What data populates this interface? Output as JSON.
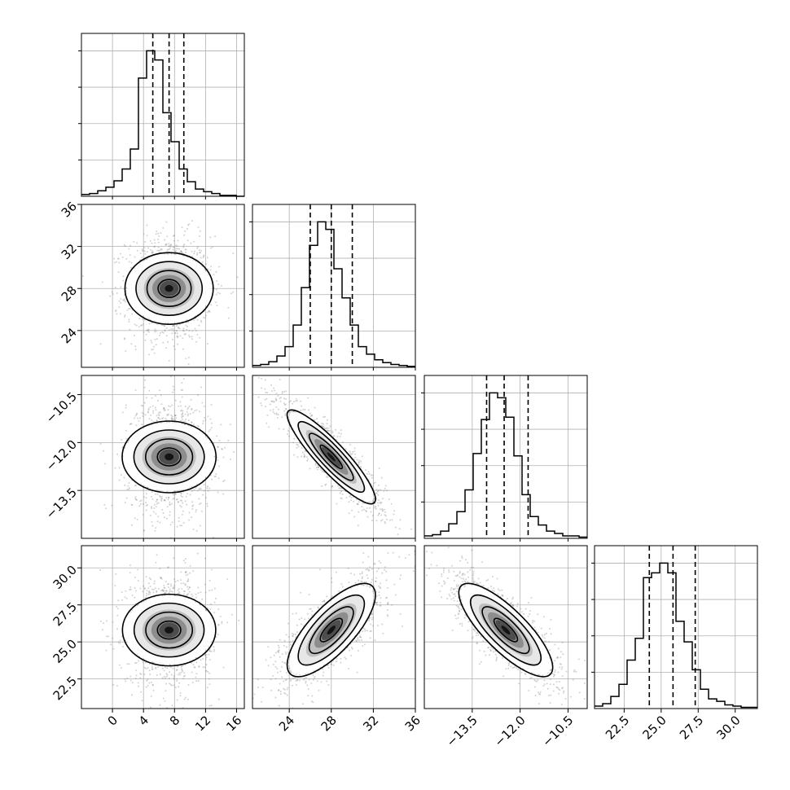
{
  "chart_data": {
    "type": "corner",
    "parameters": [
      {
        "range": [
          -4,
          17
        ],
        "ticks": [
          0,
          4,
          8,
          12,
          16
        ],
        "tick_labels": [
          "0",
          "4",
          "8",
          "12",
          "16"
        ],
        "quantiles": [
          5.2,
          7.3,
          9.2
        ],
        "mean": 7.3,
        "sd": 2.2
      },
      {
        "range": [
          20.5,
          36
        ],
        "ticks": [
          24,
          28,
          32,
          36
        ],
        "tick_labels": [
          "24",
          "28",
          "32",
          "36"
        ],
        "quantiles": [
          26.0,
          28.0,
          30.0
        ],
        "mean": 28.0,
        "sd": 2.0
      },
      {
        "range": [
          -15,
          -9.9
        ],
        "ticks": [
          -13.5,
          -12.0,
          -10.5
        ],
        "tick_labels": [
          "−13.5",
          "−12.0",
          "−10.5"
        ],
        "quantiles": [
          -13.05,
          -12.5,
          -11.75
        ],
        "mean": -12.45,
        "sd": 0.7
      },
      {
        "range": [
          20.5,
          31.5
        ],
        "ticks": [
          22.5,
          25.0,
          27.5,
          30.0
        ],
        "tick_labels": [
          "22.5",
          "25.0",
          "27.5",
          "30.0"
        ],
        "quantiles": [
          24.2,
          25.8,
          27.3
        ],
        "mean": 25.8,
        "sd": 1.5
      }
    ],
    "correlations": [
      [
        1.0,
        0.0,
        0.0,
        0.0
      ],
      [
        0.0,
        1.0,
        -0.9,
        0.75
      ],
      [
        0.0,
        -0.9,
        1.0,
        -0.8
      ],
      [
        0.0,
        0.75,
        -0.8,
        1.0
      ]
    ],
    "histogram_bins": 20,
    "histogram_counts": [
      [
        2,
        3,
        6,
        10,
        17,
        30,
        52,
        130,
        160,
        150,
        92,
        60,
        30,
        16,
        8,
        5,
        3,
        1,
        1,
        0
      ],
      [
        2,
        3,
        6,
        12,
        22,
        45,
        85,
        130,
        155,
        147,
        105,
        74,
        45,
        22,
        14,
        8,
        5,
        3,
        2,
        1
      ],
      [
        2,
        3,
        6,
        12,
        22,
        40,
        70,
        98,
        120,
        116,
        100,
        68,
        36,
        18,
        11,
        6,
        4,
        2,
        2,
        1
      ],
      [
        2,
        4,
        10,
        20,
        40,
        58,
        108,
        112,
        120,
        112,
        72,
        55,
        32,
        16,
        8,
        6,
        3,
        2,
        1,
        1
      ]
    ],
    "contour_levels_sigma": [
      0.5,
      1.0,
      1.5,
      2.0
    ],
    "grid": true,
    "colors": {
      "line": "#000000",
      "grid": "#b0b0b0",
      "points": "#7f7f7f",
      "density": "#000000"
    }
  }
}
